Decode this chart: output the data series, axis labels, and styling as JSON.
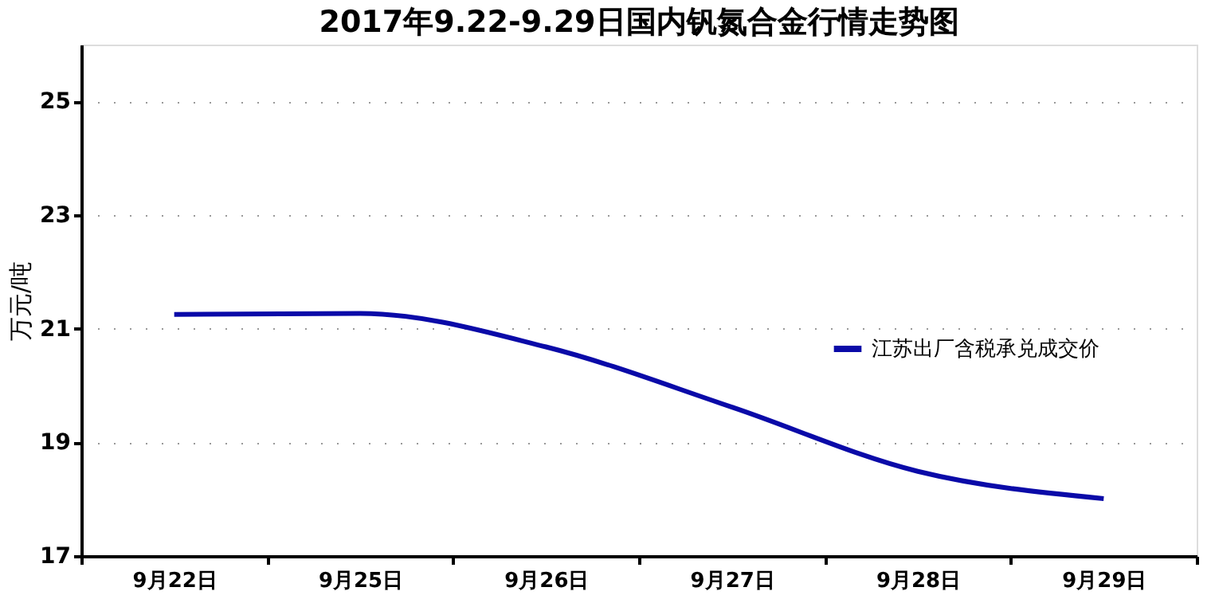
{
  "chart_data": {
    "type": "line",
    "title": "2017年9.22-9.29日国内钒氮合金行情走势图",
    "ylabel": "万元/吨",
    "categories": [
      "9月22日",
      "9月25日",
      "9月26日",
      "9月27日",
      "9月28日",
      "9月29日"
    ],
    "series": [
      {
        "name": "江苏出厂含税承兑成交价",
        "color": "#0a0aa8",
        "values": [
          21.25,
          21.27,
          20.68,
          19.62,
          18.49,
          18.01
        ]
      }
    ],
    "ylim": [
      17,
      26
    ],
    "yticks": [
      17,
      19,
      21,
      23,
      25
    ],
    "grid": "y",
    "legend": "right",
    "marker": "none",
    "line_style": "solid"
  }
}
